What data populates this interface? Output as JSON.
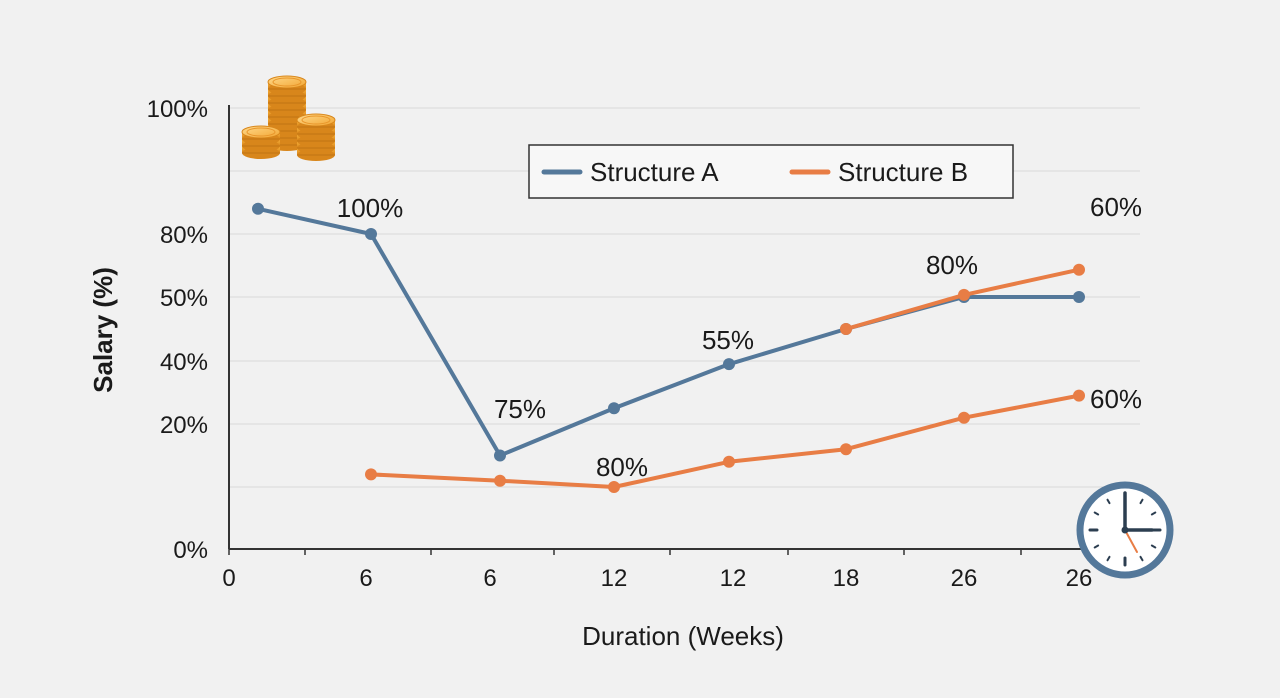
{
  "chart_data": {
    "type": "line",
    "xlabel": "Duration (Weeks)",
    "ylabel": "Salary (%)",
    "x_tick_labels": [
      "0",
      "6",
      "6",
      "12",
      "12",
      "18",
      "26",
      "26"
    ],
    "y_tick_labels": [
      "0%",
      "20%",
      "40%",
      "50%",
      "80%",
      "100%"
    ],
    "legend": {
      "position": "top-center"
    },
    "grid": true,
    "series": [
      {
        "name": "Structure A",
        "color": "#54789a",
        "points": [
          {
            "x": "0",
            "y": 84
          },
          {
            "x": "6",
            "y": 80
          },
          {
            "x": "6",
            "y": 15
          },
          {
            "x": "12",
            "y": 25
          },
          {
            "x": "12",
            "y": 39
          },
          {
            "x": "18",
            "y": 45
          },
          {
            "x": "26",
            "y": 50
          },
          {
            "x": "26",
            "y": 50
          }
        ]
      },
      {
        "name": "Structure B",
        "color": "#e87d45",
        "points": [
          {
            "x": "6",
            "y": 12
          },
          {
            "x": "6",
            "y": 11
          },
          {
            "x": "12",
            "y": 10
          },
          {
            "x": "12",
            "y": 14
          },
          {
            "x": "18",
            "y": 16
          },
          {
            "x": "26",
            "y": 22
          },
          {
            "x": "26",
            "y": 29
          }
        ],
        "extension": [
          {
            "x": "18",
            "y": 45
          },
          {
            "x": "26",
            "y": 51
          },
          {
            "x": "26",
            "y": 63
          }
        ]
      }
    ],
    "annotations": [
      "100%",
      "75%",
      "80%",
      "55%",
      "80%",
      "60%",
      "60%"
    ]
  },
  "icons": {
    "top_left": "coin-stack-icon",
    "bottom_right": "clock-icon"
  },
  "colors": {
    "background": "#f1f1f1",
    "grid": "#d9d9d9",
    "axis": "#333333",
    "series_a": "#54789a",
    "series_b": "#e87d45"
  }
}
